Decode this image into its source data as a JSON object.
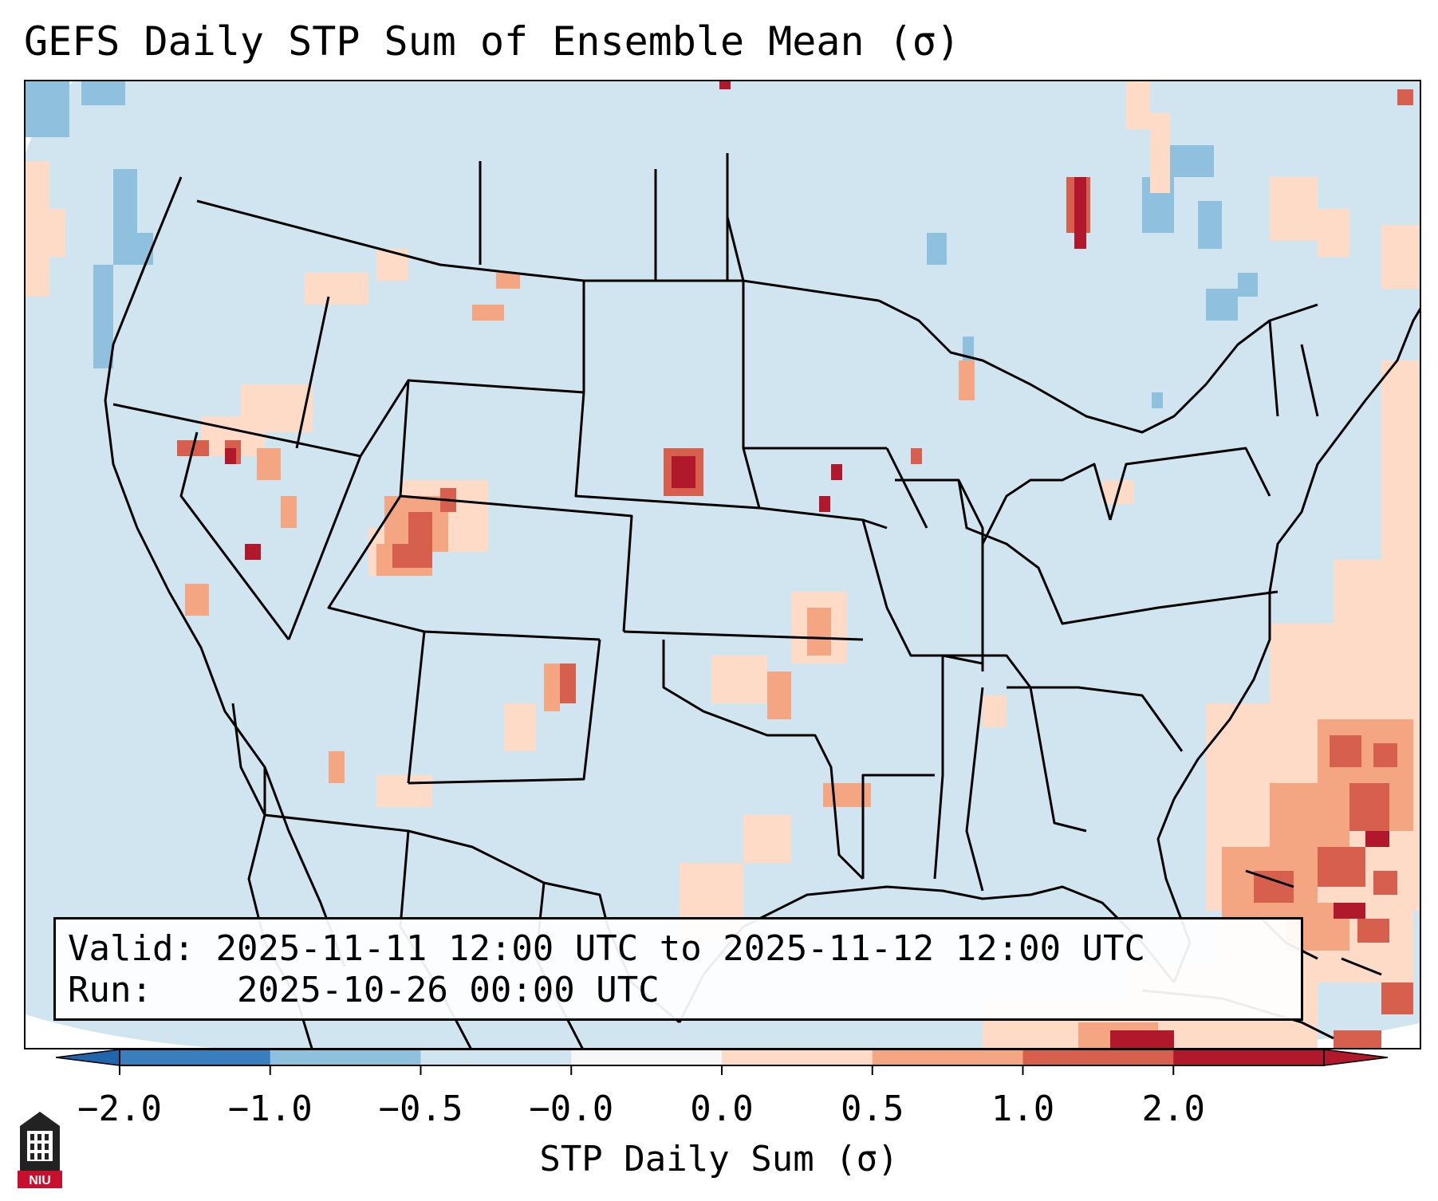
{
  "title": "GEFS Daily STP Sum of Ensemble Mean (σ)",
  "info": {
    "valid_label": "Valid:",
    "valid_value": "2025-11-11 12:00 UTC to 2025-11-12 12:00 UTC",
    "run_label": "Run:",
    "run_value": "2025-10-26 00:00 UTC"
  },
  "colorbar": {
    "label": "STP Daily Sum (σ)",
    "ticks": [
      "−2.0",
      "−1.0",
      "−0.5",
      "−0.0",
      "0.0",
      "0.5",
      "1.0",
      "2.0"
    ],
    "colors": [
      "#3a7fbd",
      "#8fc1df",
      "#d1e5f0",
      "#f7f7f7",
      "#fddbc7",
      "#f4a582",
      "#d6604d",
      "#b2182b"
    ],
    "extend_low_color": "#2166ac",
    "extend_high_color": "#b2182b"
  },
  "map": {
    "background_color": "#d1e5f0",
    "outside_color": "#ffffff",
    "boundary_color": "#000000",
    "legend_icon": "niu-logo-icon"
  },
  "logo": {
    "text": "NIU",
    "color": "#c8102e"
  }
}
